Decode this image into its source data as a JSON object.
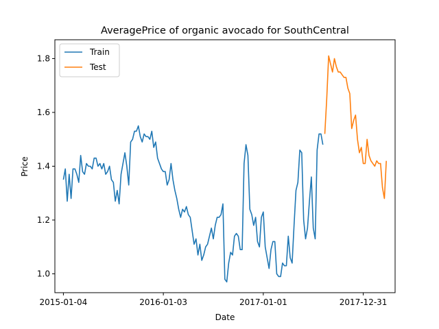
{
  "chart_data": {
    "type": "line",
    "title": "AveragePrice of organic avocado for SouthCentral",
    "xlabel": "Date",
    "ylabel": "Price",
    "x_start": "2015-01-04",
    "x_end": "2018-03-25",
    "xlim": [
      "2014-12-04",
      "2018-04-26"
    ],
    "ylim": [
      0.93,
      1.87
    ],
    "xticks": [
      "2015-01-04",
      "2016-01-03",
      "2017-01-01",
      "2017-12-31"
    ],
    "yticks": [
      1.0,
      1.2,
      1.4,
      1.6,
      1.8
    ],
    "ytick_labels": [
      "1.0",
      "1.2",
      "1.4",
      "1.6",
      "1.8"
    ],
    "legend": {
      "position": "top-left",
      "entries": [
        "Train",
        "Test"
      ]
    },
    "grid": false,
    "series": [
      {
        "name": "Train",
        "color": "#1f77b4",
        "values": [
          1.35,
          1.39,
          1.27,
          1.37,
          1.28,
          1.39,
          1.39,
          1.37,
          1.34,
          1.44,
          1.38,
          1.37,
          1.41,
          1.4,
          1.4,
          1.39,
          1.43,
          1.43,
          1.4,
          1.41,
          1.39,
          1.41,
          1.37,
          1.38,
          1.4,
          1.35,
          1.34,
          1.27,
          1.31,
          1.26,
          1.37,
          1.41,
          1.45,
          1.4,
          1.33,
          1.49,
          1.5,
          1.53,
          1.53,
          1.55,
          1.51,
          1.49,
          1.52,
          1.51,
          1.51,
          1.5,
          1.53,
          1.47,
          1.49,
          1.43,
          1.41,
          1.39,
          1.38,
          1.38,
          1.33,
          1.35,
          1.41,
          1.35,
          1.31,
          1.28,
          1.24,
          1.21,
          1.24,
          1.23,
          1.25,
          1.22,
          1.21,
          1.16,
          1.11,
          1.13,
          1.07,
          1.11,
          1.05,
          1.07,
          1.1,
          1.11,
          1.14,
          1.17,
          1.13,
          1.18,
          1.21,
          1.21,
          1.22,
          1.26,
          0.98,
          0.97,
          1.04,
          1.08,
          1.07,
          1.14,
          1.15,
          1.14,
          1.09,
          1.09,
          1.41,
          1.48,
          1.44,
          1.24,
          1.22,
          1.18,
          1.21,
          1.12,
          1.1,
          1.21,
          1.23,
          1.1,
          1.06,
          1.02,
          1.09,
          1.12,
          1.12,
          1.0,
          0.99,
          0.99,
          1.04,
          1.03,
          1.03,
          1.14,
          1.06,
          1.04,
          1.18,
          1.31,
          1.34,
          1.46,
          1.45,
          1.2,
          1.13,
          1.17,
          1.27,
          1.36,
          1.17,
          1.13,
          1.46,
          1.52,
          1.52,
          1.48
        ]
      },
      {
        "name": "Test",
        "color": "#ff7f0e",
        "values": [
          1.52,
          1.65,
          1.81,
          1.78,
          1.75,
          1.8,
          1.77,
          1.75,
          1.75,
          1.74,
          1.73,
          1.73,
          1.69,
          1.67,
          1.54,
          1.57,
          1.59,
          1.5,
          1.45,
          1.47,
          1.41,
          1.41,
          1.5,
          1.44,
          1.42,
          1.41,
          1.4,
          1.42,
          1.41,
          1.41,
          1.32,
          1.28,
          1.42
        ]
      }
    ]
  }
}
